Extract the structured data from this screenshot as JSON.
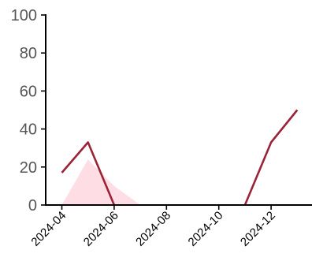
{
  "chart_data": {
    "type": "line",
    "title": "",
    "xlabel": "",
    "ylabel": "",
    "ylim": [
      0,
      100
    ],
    "yticks": [
      0,
      20,
      40,
      60,
      80,
      100
    ],
    "xlim": [
      "2024-04",
      "2025-01"
    ],
    "xticks": [
      "2024-04",
      "2024-06",
      "2024-08",
      "2024-10",
      "2024-12"
    ],
    "grid": false,
    "legend": "none",
    "colors": {
      "line": "#9b2338",
      "area": "#ffdde5",
      "axis": "#000000"
    },
    "series": [
      {
        "type": "line",
        "x": [
          "2024-04",
          "2024-05",
          "2024-06",
          "2024-07",
          "2024-08",
          "2024-09",
          "2024-10",
          "2024-11",
          "2024-12",
          "2025-01"
        ],
        "values": [
          17,
          33,
          0,
          null,
          null,
          null,
          null,
          0,
          33,
          50
        ]
      },
      {
        "type": "area",
        "x": [
          "2024-04",
          "2024-05",
          "2024-06",
          "2024-07"
        ],
        "values": [
          0,
          24,
          10,
          0
        ]
      }
    ]
  }
}
